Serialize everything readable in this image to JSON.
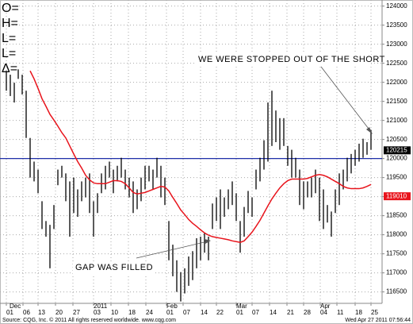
{
  "chart_data": {
    "type": "ohlc",
    "readout": [
      "O=",
      "H=",
      "L=",
      "L=",
      "Δ="
    ],
    "x": [
      0,
      1,
      2,
      3,
      4,
      5,
      6,
      7,
      8,
      9,
      10,
      11,
      12,
      13,
      14,
      15,
      16,
      17,
      18,
      19,
      20,
      21,
      22,
      23,
      24,
      25,
      26,
      27,
      28,
      29,
      30,
      31,
      32,
      33,
      34,
      35,
      36,
      37,
      38,
      39,
      40,
      41,
      42,
      43,
      44,
      45,
      46,
      47,
      48,
      49,
      50,
      51,
      52,
      53,
      54,
      55,
      56,
      57,
      58,
      59,
      60,
      61,
      62,
      63,
      64,
      65,
      66,
      67,
      68,
      69,
      70,
      71,
      72,
      73,
      74,
      75,
      76,
      77,
      78,
      79,
      80,
      81,
      82,
      83,
      84,
      85,
      86,
      87,
      88,
      89,
      90,
      91,
      92
    ],
    "high": [
      122300,
      122200,
      121990,
      122340,
      122200,
      121780,
      120540,
      119920,
      119710,
      118880,
      118360,
      118260,
      118780,
      119710,
      119810,
      119610,
      119400,
      119500,
      119190,
      119400,
      119500,
      119610,
      118880,
      119090,
      119610,
      119810,
      119920,
      119710,
      119810,
      120020,
      119710,
      119500,
      119400,
      119190,
      119500,
      119810,
      119810,
      119710,
      120020,
      119810,
      119500,
      118360,
      117740,
      117330,
      117020,
      117120,
      117430,
      117570,
      117910,
      117950,
      118050,
      117950,
      118820,
      118980,
      119190,
      118980,
      119190,
      119400,
      119090,
      118360,
      118730,
      119150,
      118980,
      119710,
      120020,
      120480,
      121470,
      121780,
      121260,
      121060,
      121060,
      120330,
      120230,
      120020,
      119710,
      119400,
      119400,
      119500,
      119710,
      119500,
      119190,
      118780,
      118610,
      119190,
      119610,
      119710,
      120020,
      120120,
      120230,
      120390,
      120520,
      120430,
      120750
    ],
    "low": [
      121780,
      121640,
      121470,
      122090,
      121680,
      120540,
      119500,
      119400,
      119090,
      118150,
      117950,
      117120,
      118150,
      119300,
      119500,
      118880,
      117950,
      118570,
      118470,
      118880,
      118980,
      118570,
      117950,
      118570,
      119090,
      119190,
      119500,
      119090,
      119400,
      119500,
      119190,
      118980,
      118570,
      118670,
      118880,
      119190,
      119400,
      119190,
      119500,
      118980,
      118780,
      117330,
      116910,
      116500,
      116250,
      116460,
      116660,
      116810,
      117120,
      117330,
      117530,
      117330,
      118150,
      118360,
      118150,
      118470,
      118670,
      118780,
      118360,
      117530,
      117950,
      118570,
      118470,
      119190,
      119400,
      119710,
      119920,
      120330,
      120430,
      120230,
      120330,
      119810,
      119500,
      119500,
      118780,
      118670,
      118980,
      118980,
      119090,
      118360,
      118150,
      118320,
      117950,
      118570,
      118780,
      119190,
      119400,
      119610,
      119810,
      119920,
      120020,
      120100,
      120230
    ],
    "bar_color": "#000000",
    "overlay": {
      "color": "#e8141c",
      "values": [
        null,
        null,
        null,
        null,
        null,
        null,
        122300,
        122090,
        121840,
        121570,
        121370,
        121160,
        121010,
        120850,
        120680,
        120540,
        120330,
        120120,
        119920,
        119750,
        119560,
        119440,
        119360,
        119340,
        119340,
        119340,
        119380,
        119420,
        119420,
        119400,
        119340,
        119230,
        119110,
        119070,
        119090,
        119110,
        119150,
        119190,
        119230,
        119270,
        119250,
        119150,
        118980,
        118820,
        118650,
        118530,
        118400,
        118300,
        118220,
        118130,
        118050,
        117990,
        117950,
        117930,
        117910,
        117890,
        117870,
        117840,
        117820,
        117800,
        117840,
        117950,
        118070,
        118220,
        118380,
        118570,
        118760,
        118940,
        119090,
        119230,
        119340,
        119420,
        119460,
        119460,
        119460,
        119460,
        119480,
        119520,
        119560,
        119580,
        119560,
        119520,
        119460,
        119400,
        119340,
        119270,
        119230,
        119210,
        119210,
        119210,
        119230,
        119270,
        119320
      ]
    },
    "hline": {
      "value": 120000,
      "color": "#1f2fa8"
    },
    "price_markers": [
      {
        "value": 120215,
        "color": "#000000"
      },
      {
        "value": 119010,
        "color": "#e8141c"
      }
    ],
    "xlim": [
      -1.6,
      94.8
    ],
    "ylim": [
      116200,
      124160
    ],
    "yticks": [
      116500,
      117000,
      117500,
      118000,
      118500,
      119000,
      119500,
      120000,
      120500,
      121000,
      121500,
      122000,
      122500,
      123000,
      123500,
      124000
    ],
    "xticks": [
      {
        "value": 0,
        "label": "01"
      },
      {
        "value": 4.2,
        "label": "06"
      },
      {
        "value": 8,
        "label": "13"
      },
      {
        "value": 12.4,
        "label": "20"
      },
      {
        "value": 16.8,
        "label": "27"
      },
      {
        "value": 22,
        "label": "03"
      },
      {
        "value": 26.4,
        "label": "10"
      },
      {
        "value": 30.8,
        "label": "18"
      },
      {
        "value": 35.2,
        "label": "24"
      },
      {
        "value": 40.4,
        "label": "01"
      },
      {
        "value": 44.6,
        "label": "07"
      },
      {
        "value": 49,
        "label": "14"
      },
      {
        "value": 53,
        "label": "22"
      },
      {
        "value": 58,
        "label": "01"
      },
      {
        "value": 62,
        "label": "07"
      },
      {
        "value": 66.4,
        "label": "14"
      },
      {
        "value": 70.8,
        "label": "21"
      },
      {
        "value": 75,
        "label": "28"
      },
      {
        "value": 79.2,
        "label": "04"
      },
      {
        "value": 83.4,
        "label": "11"
      },
      {
        "value": 88,
        "label": "18"
      },
      {
        "value": 92,
        "label": "25"
      }
    ],
    "month_labels": [
      {
        "value": 0.8,
        "label": "Dec"
      },
      {
        "value": 22,
        "label": "2011"
      },
      {
        "value": 40.4,
        "label": "Feb"
      },
      {
        "value": 58,
        "label": "Mar"
      },
      {
        "value": 79.2,
        "label": "Apr"
      }
    ],
    "grid": true,
    "annotations": [
      "WE WERE STOPPED OUT OF THE SHORT",
      "GAP WAS FILLED"
    ],
    "source": "Source: CQG, Inc. © 2011 All rights reserved worldwide. www.cqg.com",
    "timestamp": "Wed Apr 27 2011 07:56:44"
  }
}
